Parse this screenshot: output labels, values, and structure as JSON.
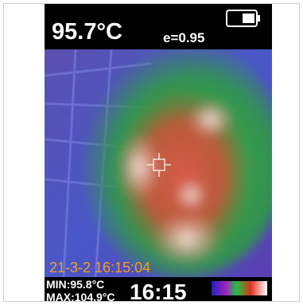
{
  "header": {
    "temperature": "95.7°C",
    "emissivity": "e=0.95"
  },
  "timestamp": "21-3-2 16:15:04",
  "footer": {
    "min": "MIN:95.8°C",
    "max": "MAX:104.9°C",
    "time": "16:15"
  }
}
